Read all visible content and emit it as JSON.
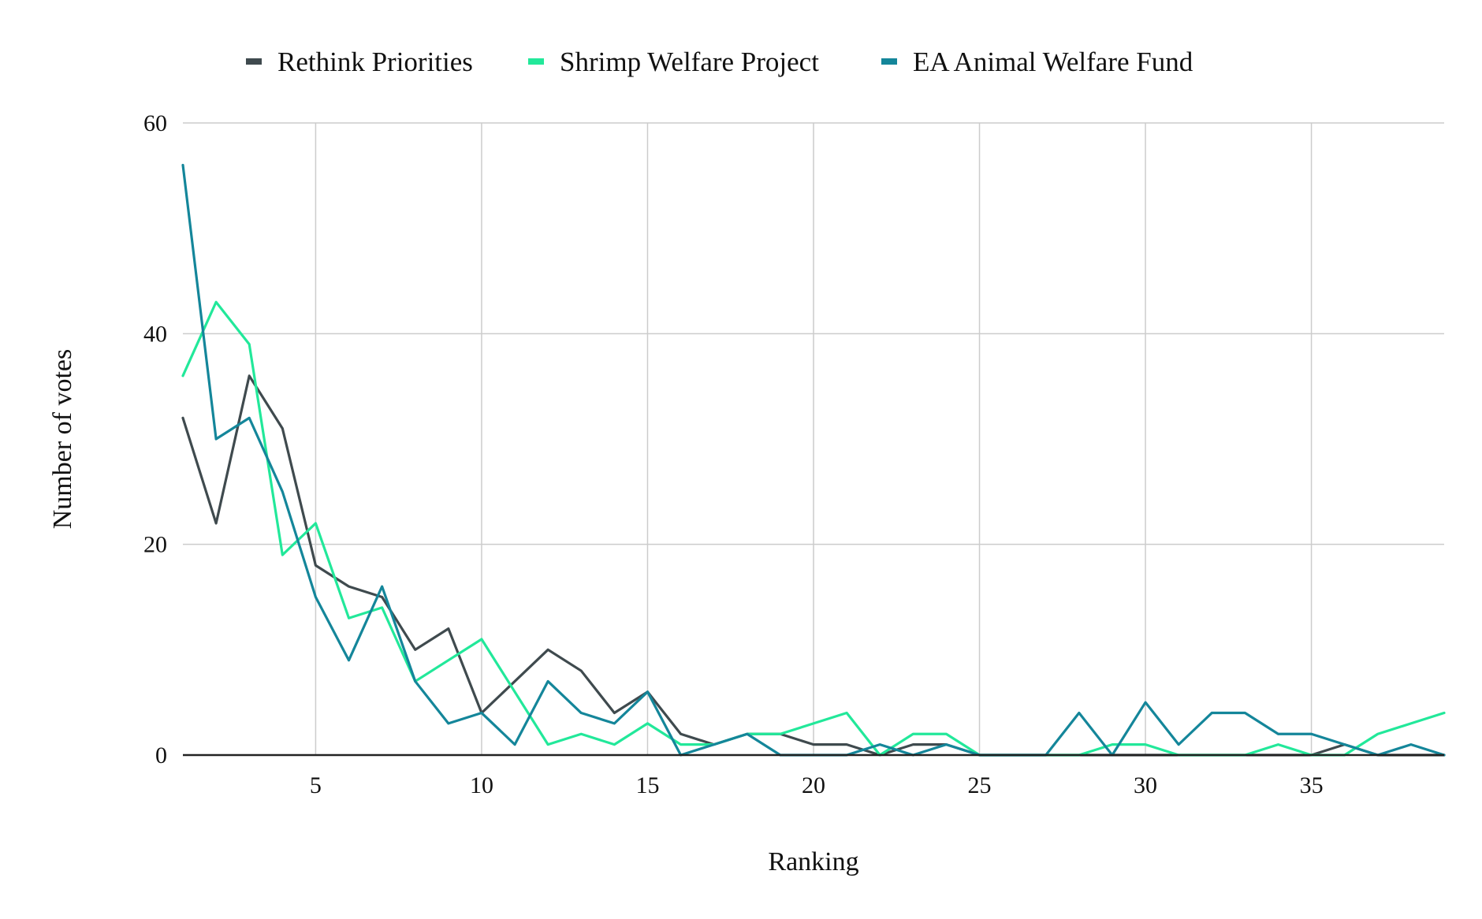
{
  "chart_data": {
    "type": "line",
    "title": "",
    "xlabel": "Ranking",
    "ylabel": "Number of votes",
    "xlim": [
      1,
      39
    ],
    "ylim": [
      0,
      60
    ],
    "x_ticks": [
      5,
      10,
      15,
      20,
      25,
      30,
      35
    ],
    "y_ticks": [
      0,
      20,
      40,
      60
    ],
    "grid": true,
    "legend_position": "top",
    "x": [
      1,
      2,
      3,
      4,
      5,
      6,
      7,
      8,
      9,
      10,
      11,
      12,
      13,
      14,
      15,
      16,
      17,
      18,
      19,
      20,
      21,
      22,
      23,
      24,
      25,
      26,
      27,
      28,
      29,
      30,
      31,
      32,
      33,
      34,
      35,
      36,
      37,
      38,
      39
    ],
    "series": [
      {
        "name": "Rethink Priorities",
        "color": "#3f4a4e",
        "values": [
          32,
          22,
          36,
          31,
          18,
          16,
          15,
          10,
          12,
          4,
          7,
          10,
          8,
          4,
          6,
          2,
          1,
          2,
          2,
          1,
          1,
          0,
          1,
          1,
          0,
          0,
          0,
          0,
          0,
          0,
          0,
          0,
          0,
          0,
          0,
          1,
          0,
          0,
          0
        ]
      },
      {
        "name": "Shrimp Welfare Project",
        "color": "#22e89a",
        "values": [
          36,
          43,
          39,
          19,
          22,
          13,
          14,
          7,
          9,
          11,
          6,
          1,
          2,
          1,
          3,
          1,
          1,
          2,
          2,
          3,
          4,
          0,
          2,
          2,
          0,
          0,
          0,
          0,
          1,
          1,
          0,
          0,
          0,
          1,
          0,
          0,
          2,
          3,
          4
        ]
      },
      {
        "name": "EA Animal Welfare Fund",
        "color": "#14869a",
        "values": [
          56,
          30,
          32,
          25,
          15,
          9,
          16,
          7,
          3,
          4,
          1,
          7,
          4,
          3,
          6,
          0,
          1,
          2,
          0,
          0,
          0,
          1,
          0,
          1,
          0,
          0,
          0,
          4,
          0,
          5,
          1,
          4,
          4,
          2,
          2,
          1,
          0,
          1,
          0
        ]
      }
    ]
  }
}
